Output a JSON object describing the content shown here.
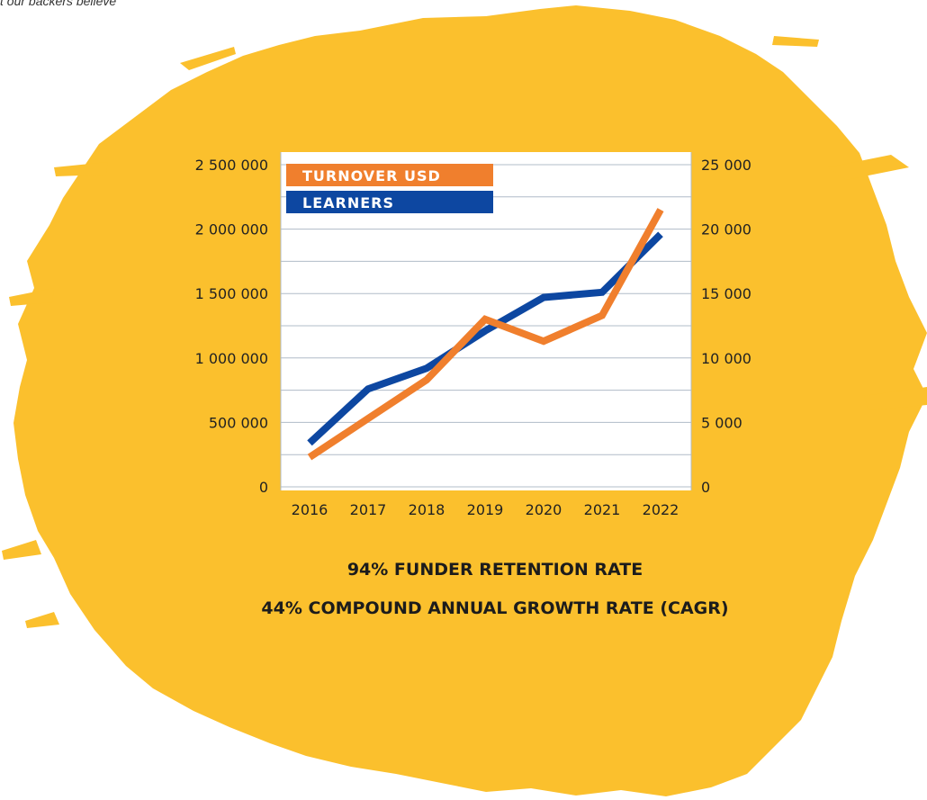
{
  "header": {
    "intro_text": "t our backers believe"
  },
  "colors": {
    "background_splash": "#fbc02d",
    "turnover": "#f07f2d",
    "learners": "#0d47a1",
    "plot_background": "#ffffff",
    "gridline": "#b0bcc8"
  },
  "chart_data": {
    "type": "line",
    "categories": [
      "2016",
      "2017",
      "2018",
      "2019",
      "2020",
      "2021",
      "2022"
    ],
    "left_axis": {
      "ylim": [
        0,
        2500000
      ],
      "ticks": [
        "0",
        "500 000",
        "1 000 000",
        "1 500 000",
        "2 000 000",
        "2 500 000"
      ]
    },
    "right_axis": {
      "ylim": [
        0,
        25000
      ],
      "ticks": [
        "0",
        "5 000",
        "10 000",
        "15 000",
        "20 000",
        "25 000"
      ]
    },
    "series": [
      {
        "name": "TURNOVER USD",
        "axis": "left",
        "color": "#f07f2d",
        "values": [
          230000,
          530000,
          830000,
          1300000,
          1130000,
          1330000,
          2150000
        ]
      },
      {
        "name": "LEARNERS",
        "axis": "right",
        "color": "#0d47a1",
        "values": [
          3400,
          7600,
          9200,
          12100,
          14700,
          15100,
          19600
        ]
      }
    ],
    "grid": true,
    "legend_position": "top-left"
  },
  "stats": {
    "retention": "94% FUNDER RETENTION RATE",
    "cagr": "44% COMPOUND ANNUAL GROWTH RATE (CAGR)"
  }
}
